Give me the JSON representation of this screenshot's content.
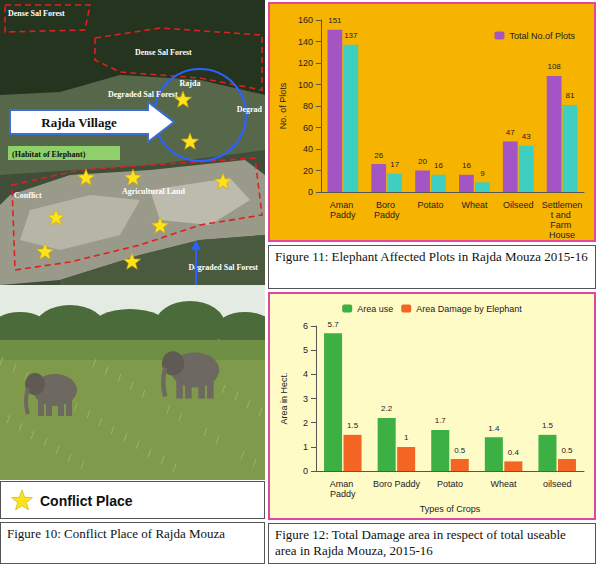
{
  "figure10": {
    "map_labels": [
      "Dense Sal Forest",
      "Dense Sal Forest",
      "Degraded Sal Forest",
      "Rajda Village",
      "Rajda",
      "Degrad",
      "(Habitat of Elephant)",
      "Conflict",
      "Agricultural Land",
      "Degraded Sal Forest"
    ],
    "legend": "Conflict Place",
    "caption": "Figure 10: Conflict Place of Rajda Mouza"
  },
  "chart_data": [
    {
      "type": "bar",
      "title": "Figure 11: Elephant Affected Plots in Rajda Mouza 2015-16",
      "categories": [
        "Aman Paddy",
        "Boro Paddy",
        "Potato",
        "Wheat",
        "Oilseed",
        "Settlement and Farm House"
      ],
      "series": [
        {
          "name": "Total No.of Plots",
          "color": "#a355c4",
          "values": [
            151,
            26,
            20,
            16,
            47,
            108
          ]
        },
        {
          "color": "#3fcfc0",
          "values": [
            137,
            17,
            16,
            9,
            43,
            81
          ]
        }
      ],
      "y_label": "No. of Plots",
      "ylim": [
        0,
        160
      ],
      "yticks": [
        0,
        20,
        40,
        60,
        80,
        100,
        120,
        140,
        160
      ],
      "grid": false,
      "legend": "upper right",
      "data_labels": true
    },
    {
      "type": "bar",
      "title": "Figure 12: Total Damage area in respect of total useable area in Rajda Mouza, 2015-16",
      "categories": [
        "Aman Paddy",
        "Boro Paddy",
        "Potato",
        "Wheat",
        "oilseed"
      ],
      "series": [
        {
          "name": "Area use",
          "color": "#3cb043",
          "values": [
            5.7,
            2.2,
            1.7,
            1.4,
            1.5
          ]
        },
        {
          "name": "Area Damage by Elephant",
          "color": "#f26522",
          "values": [
            1.5,
            1,
            0.5,
            0.4,
            0.5
          ]
        }
      ],
      "x_label": "Types of Crops",
      "y_label": "Area in Hect.",
      "ylim": [
        0,
        6
      ],
      "yticks": [
        0,
        1,
        2,
        3,
        4,
        5,
        6
      ],
      "grid": false,
      "legend": "top",
      "data_labels": true
    }
  ]
}
